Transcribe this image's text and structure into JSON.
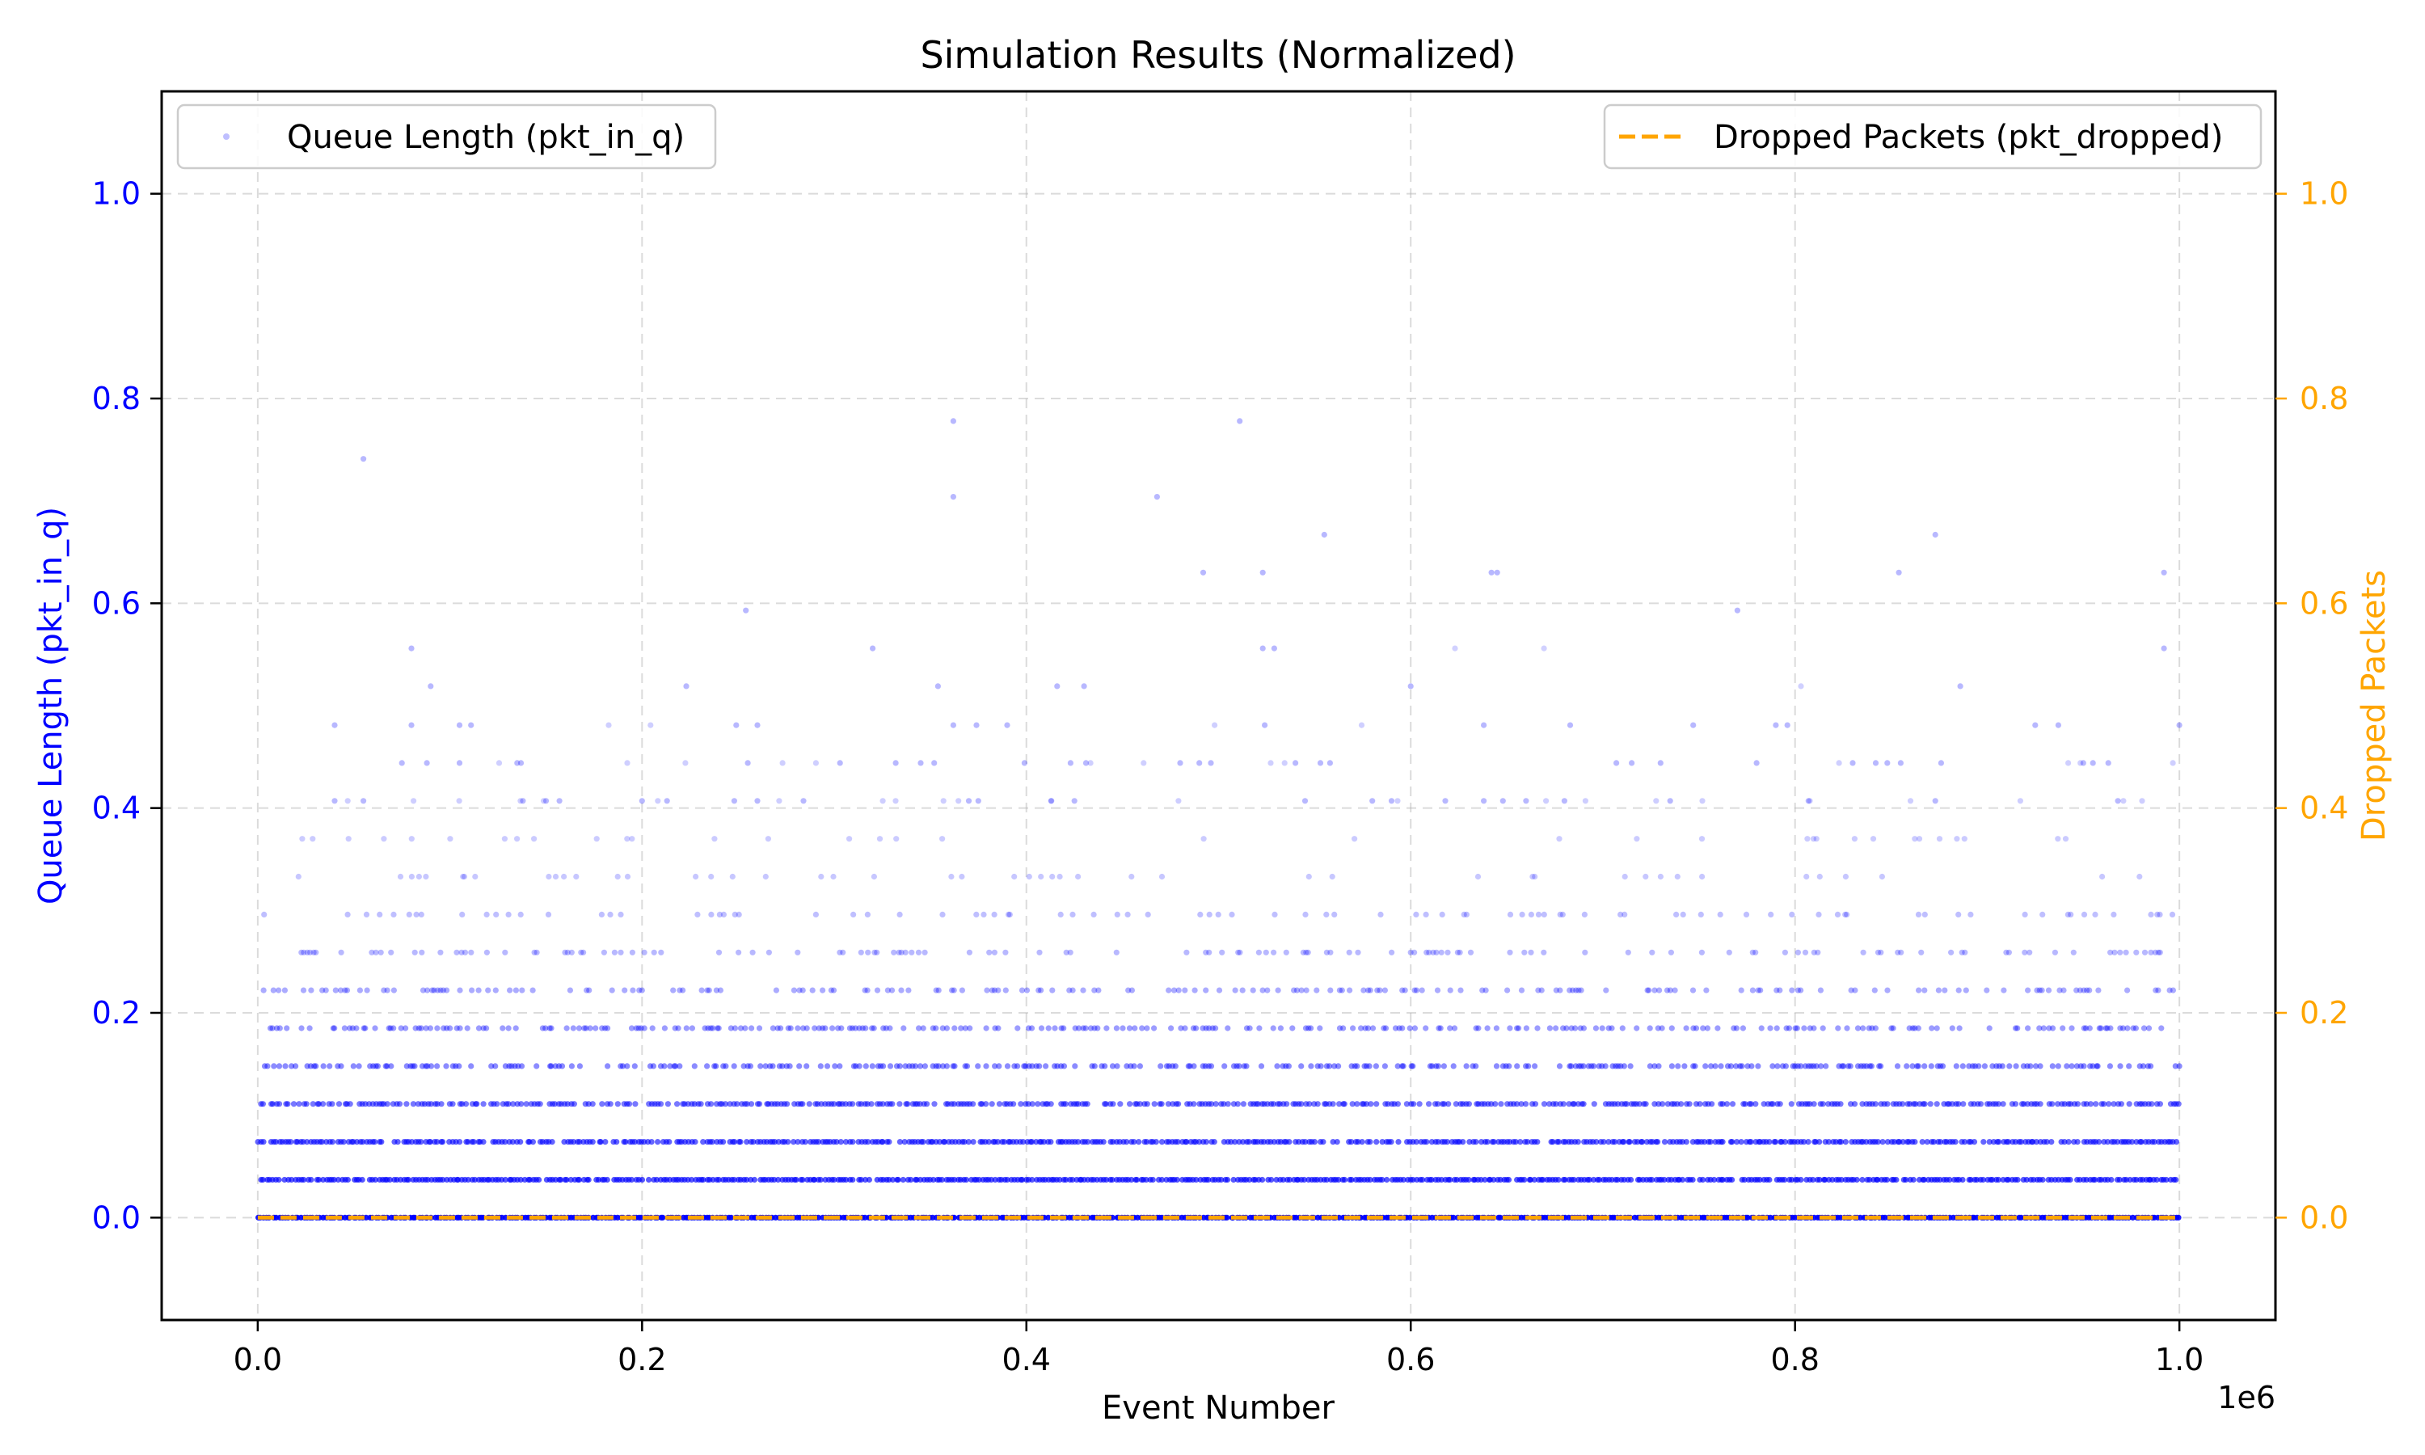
{
  "chart_data": {
    "type": "scatter",
    "title": "Simulation Results (Normalized)",
    "xlabel": "Event Number",
    "x_offset_label": "1e6",
    "ylabel": "Queue Length (pkt_in_q)",
    "ylabel_right": "Dropped Packets",
    "xlim": [
      -0.05,
      1.05
    ],
    "ylim": [
      -0.1,
      1.1
    ],
    "ylim_right": [
      -0.1,
      1.1
    ],
    "x_ticks": [
      0.0,
      0.2,
      0.4,
      0.6,
      0.8,
      1.0
    ],
    "x_tick_labels": [
      "0.0",
      "0.2",
      "0.4",
      "0.6",
      "0.8",
      "1.0"
    ],
    "y_ticks": [
      0.0,
      0.2,
      0.4,
      0.6,
      0.8,
      1.0
    ],
    "y_tick_labels": [
      "0.0",
      "0.2",
      "0.4",
      "0.6",
      "0.8",
      "1.0"
    ],
    "y_tick_labels_right": [
      "0.0",
      "0.2",
      "0.4",
      "0.6",
      "0.8",
      "1.0"
    ],
    "grid": true,
    "colors": {
      "left_axis": "#0000ff",
      "right_axis": "#ffa500",
      "scatter": "#0000ff",
      "line": "#ffa500"
    },
    "series": [
      {
        "name": "Queue Length (pkt_in_q)",
        "type": "scatter",
        "axis": "left",
        "legend_position": "top-left",
        "levels": [
          0.0,
          0.037,
          0.074,
          0.111,
          0.148,
          0.185,
          0.222,
          0.259,
          0.296,
          0.333,
          0.37,
          0.407,
          0.444,
          0.481,
          0.519,
          0.556
        ],
        "level_density": [
          1.0,
          0.95,
          0.85,
          0.7,
          0.55,
          0.42,
          0.3,
          0.2,
          0.14,
          0.08,
          0.05,
          0.025,
          0.02,
          0.014,
          0.005,
          0.003
        ],
        "points": [
          [
            0.055,
            0.741
          ],
          [
            0.362,
            0.778
          ],
          [
            0.362,
            0.704
          ],
          [
            0.511,
            0.778
          ],
          [
            0.468,
            0.704
          ],
          [
            0.555,
            0.667
          ],
          [
            0.873,
            0.667
          ],
          [
            0.492,
            0.63
          ],
          [
            0.523,
            0.63
          ],
          [
            0.642,
            0.63
          ],
          [
            0.645,
            0.63
          ],
          [
            0.854,
            0.63
          ],
          [
            0.992,
            0.63
          ],
          [
            0.254,
            0.593
          ],
          [
            0.77,
            0.593
          ],
          [
            0.08,
            0.556
          ],
          [
            0.32,
            0.556
          ],
          [
            0.523,
            0.556
          ],
          [
            0.529,
            0.556
          ],
          [
            0.992,
            0.556
          ],
          [
            0.09,
            0.519
          ],
          [
            0.223,
            0.519
          ],
          [
            0.354,
            0.519
          ],
          [
            0.416,
            0.519
          ],
          [
            0.43,
            0.519
          ],
          [
            0.6,
            0.519
          ],
          [
            0.886,
            0.519
          ],
          [
            0.04,
            0.481
          ],
          [
            0.08,
            0.481
          ],
          [
            0.105,
            0.481
          ],
          [
            0.111,
            0.481
          ],
          [
            0.249,
            0.481
          ],
          [
            0.26,
            0.481
          ],
          [
            0.362,
            0.481
          ],
          [
            0.374,
            0.481
          ],
          [
            0.39,
            0.481
          ],
          [
            0.524,
            0.481
          ],
          [
            0.638,
            0.481
          ],
          [
            0.683,
            0.481
          ],
          [
            0.747,
            0.481
          ],
          [
            0.79,
            0.481
          ],
          [
            0.796,
            0.481
          ],
          [
            0.925,
            0.481
          ],
          [
            0.937,
            0.481
          ],
          [
            1.0,
            0.481
          ],
          [
            0.075,
            0.444
          ],
          [
            0.088,
            0.444
          ],
          [
            0.105,
            0.444
          ],
          [
            0.135,
            0.444
          ],
          [
            0.137,
            0.444
          ],
          [
            0.255,
            0.444
          ],
          [
            0.303,
            0.444
          ],
          [
            0.332,
            0.444
          ],
          [
            0.345,
            0.444
          ],
          [
            0.352,
            0.444
          ],
          [
            0.399,
            0.444
          ],
          [
            0.423,
            0.444
          ],
          [
            0.431,
            0.444
          ],
          [
            0.48,
            0.444
          ],
          [
            0.49,
            0.444
          ],
          [
            0.496,
            0.444
          ],
          [
            0.54,
            0.444
          ],
          [
            0.553,
            0.444
          ],
          [
            0.558,
            0.444
          ],
          [
            0.707,
            0.444
          ],
          [
            0.715,
            0.444
          ],
          [
            0.73,
            0.444
          ],
          [
            0.78,
            0.444
          ],
          [
            0.83,
            0.444
          ],
          [
            0.842,
            0.444
          ],
          [
            0.848,
            0.444
          ],
          [
            0.855,
            0.444
          ],
          [
            0.876,
            0.444
          ],
          [
            0.95,
            0.444
          ],
          [
            0.955,
            0.444
          ],
          [
            0.963,
            0.444
          ],
          [
            0.04,
            0.407
          ],
          [
            0.055,
            0.407
          ],
          [
            0.138,
            0.407
          ],
          [
            0.15,
            0.407
          ],
          [
            0.157,
            0.407
          ],
          [
            0.2,
            0.407
          ],
          [
            0.213,
            0.407
          ],
          [
            0.248,
            0.407
          ],
          [
            0.26,
            0.407
          ],
          [
            0.284,
            0.407
          ],
          [
            0.37,
            0.407
          ],
          [
            0.375,
            0.407
          ],
          [
            0.413,
            0.407
          ],
          [
            0.425,
            0.407
          ],
          [
            0.545,
            0.407
          ],
          [
            0.58,
            0.407
          ],
          [
            0.59,
            0.407
          ],
          [
            0.618,
            0.407
          ],
          [
            0.638,
            0.407
          ],
          [
            0.648,
            0.407
          ],
          [
            0.66,
            0.407
          ],
          [
            0.68,
            0.407
          ],
          [
            0.735,
            0.407
          ],
          [
            0.807,
            0.407
          ],
          [
            0.873,
            0.407
          ],
          [
            0.968,
            0.407
          ]
        ]
      },
      {
        "name": "Dropped Packets (pkt_dropped)",
        "type": "line",
        "style": "dashed",
        "axis": "right",
        "legend_position": "top-right",
        "x": [
          0.0,
          1.0
        ],
        "values": [
          0.0,
          0.0
        ]
      }
    ]
  }
}
